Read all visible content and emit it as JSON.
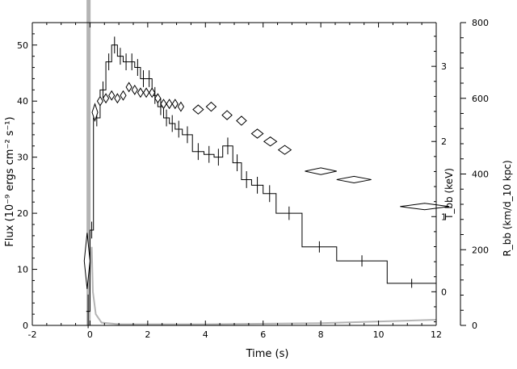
{
  "chart_data": {
    "type": "line",
    "xlabel": "Time (s)",
    "xlim": [
      -2,
      12
    ],
    "x_ticks": [
      -2,
      0,
      2,
      4,
      6,
      8,
      10,
      12
    ],
    "left_axis": {
      "label": "Flux (10⁻⁹ ergs cm⁻² s⁻¹)",
      "ylim": [
        0,
        54
      ],
      "ticks": [
        0,
        10,
        20,
        30,
        40,
        50
      ]
    },
    "temperature_axis": {
      "label": "T_bb (keV)",
      "ticks": [
        0,
        1,
        2,
        3
      ],
      "flux_value_at_0": 6,
      "flux_value_at_1": 19.4
    },
    "radius_axis": {
      "label": "R_bb (km/d_10 kpc)",
      "ticks": [
        0,
        200,
        400,
        600,
        800
      ],
      "flux_value_at_0": 0,
      "flux_value_per_unit": 0.0675
    },
    "series": [
      {
        "kind": "histogram",
        "color": "#000000",
        "bins": [
          {
            "x0": -0.13,
            "x1": 0.0,
            "y": 2.5,
            "err": 3.0
          },
          {
            "x0": 0.0,
            "x1": 0.12,
            "y": 17,
            "err": 1.5
          },
          {
            "x0": 0.12,
            "x1": 0.35,
            "y": 37,
            "err": 1.5
          },
          {
            "x0": 0.35,
            "x1": 0.55,
            "y": 42,
            "err": 1.5
          },
          {
            "x0": 0.55,
            "x1": 0.75,
            "y": 47,
            "err": 1.5
          },
          {
            "x0": 0.75,
            "x1": 0.95,
            "y": 50,
            "err": 1.5
          },
          {
            "x0": 0.95,
            "x1": 1.15,
            "y": 48,
            "err": 1.5
          },
          {
            "x0": 1.15,
            "x1": 1.35,
            "y": 47,
            "err": 1.5
          },
          {
            "x0": 1.35,
            "x1": 1.55,
            "y": 47,
            "err": 1.5
          },
          {
            "x0": 1.55,
            "x1": 1.75,
            "y": 46,
            "err": 1.5
          },
          {
            "x0": 1.75,
            "x1": 1.95,
            "y": 44,
            "err": 1.5
          },
          {
            "x0": 1.95,
            "x1": 2.15,
            "y": 44,
            "err": 1.5
          },
          {
            "x0": 2.15,
            "x1": 2.35,
            "y": 41,
            "err": 1.5
          },
          {
            "x0": 2.35,
            "x1": 2.55,
            "y": 39,
            "err": 1.5
          },
          {
            "x0": 2.55,
            "x1": 2.75,
            "y": 37,
            "err": 1.5
          },
          {
            "x0": 2.75,
            "x1": 2.95,
            "y": 36,
            "err": 1.5
          },
          {
            "x0": 2.95,
            "x1": 3.2,
            "y": 35,
            "err": 1.5
          },
          {
            "x0": 3.2,
            "x1": 3.55,
            "y": 34,
            "err": 1.5
          },
          {
            "x0": 3.55,
            "x1": 3.95,
            "y": 31,
            "err": 1.5
          },
          {
            "x0": 3.95,
            "x1": 4.3,
            "y": 30.5,
            "err": 1.5
          },
          {
            "x0": 4.3,
            "x1": 4.6,
            "y": 30,
            "err": 1.5
          },
          {
            "x0": 4.6,
            "x1": 4.95,
            "y": 32,
            "err": 1.5
          },
          {
            "x0": 4.95,
            "x1": 5.25,
            "y": 29,
            "err": 1.5
          },
          {
            "x0": 5.25,
            "x1": 5.6,
            "y": 26,
            "err": 1.5
          },
          {
            "x0": 5.6,
            "x1": 6.0,
            "y": 25,
            "err": 1.5
          },
          {
            "x0": 6.0,
            "x1": 6.45,
            "y": 23.5,
            "err": 1.5
          },
          {
            "x0": 6.45,
            "x1": 7.35,
            "y": 20,
            "err": 1.2
          },
          {
            "x0": 7.35,
            "x1": 8.55,
            "y": 14,
            "err": 1.0
          },
          {
            "x0": 8.55,
            "x1": 10.3,
            "y": 11.5,
            "err": 1.0
          },
          {
            "x0": 10.3,
            "x1": 12.0,
            "y": 7.5,
            "err": 0.8
          }
        ]
      },
      {
        "kind": "diamonds",
        "color": "#000000",
        "points": [
          {
            "x": -0.1,
            "y": 11.5,
            "xerr": 0.1,
            "yerr": 5.0
          },
          {
            "x": 0.17,
            "y": 38,
            "xerr": 0.09,
            "yerr": 1.5
          },
          {
            "x": 0.35,
            "y": 40,
            "xerr": 0.08,
            "yerr": 0.8
          },
          {
            "x": 0.55,
            "y": 40.5,
            "xerr": 0.08,
            "yerr": 0.8
          },
          {
            "x": 0.75,
            "y": 41,
            "xerr": 0.08,
            "yerr": 0.8
          },
          {
            "x": 0.95,
            "y": 40.5,
            "xerr": 0.08,
            "yerr": 0.8
          },
          {
            "x": 1.15,
            "y": 41,
            "xerr": 0.08,
            "yerr": 0.8
          },
          {
            "x": 1.35,
            "y": 42.5,
            "xerr": 0.08,
            "yerr": 0.8
          },
          {
            "x": 1.55,
            "y": 42,
            "xerr": 0.08,
            "yerr": 0.8
          },
          {
            "x": 1.75,
            "y": 41.5,
            "xerr": 0.08,
            "yerr": 0.8
          },
          {
            "x": 1.95,
            "y": 41.5,
            "xerr": 0.08,
            "yerr": 0.8
          },
          {
            "x": 2.15,
            "y": 41.5,
            "xerr": 0.08,
            "yerr": 0.8
          },
          {
            "x": 2.35,
            "y": 40.5,
            "xerr": 0.08,
            "yerr": 0.8
          },
          {
            "x": 2.55,
            "y": 39.5,
            "xerr": 0.08,
            "yerr": 0.8
          },
          {
            "x": 2.75,
            "y": 39.5,
            "xerr": 0.08,
            "yerr": 0.8
          },
          {
            "x": 2.95,
            "y": 39.5,
            "xerr": 0.08,
            "yerr": 0.8
          },
          {
            "x": 3.15,
            "y": 39,
            "xerr": 0.1,
            "yerr": 0.8
          },
          {
            "x": 3.75,
            "y": 38.5,
            "xerr": 0.18,
            "yerr": 0.8
          },
          {
            "x": 4.2,
            "y": 39,
            "xerr": 0.17,
            "yerr": 0.8
          },
          {
            "x": 4.75,
            "y": 37.5,
            "xerr": 0.17,
            "yerr": 0.8
          },
          {
            "x": 5.25,
            "y": 36.5,
            "xerr": 0.17,
            "yerr": 0.8
          },
          {
            "x": 5.8,
            "y": 34.2,
            "xerr": 0.2,
            "yerr": 0.8
          },
          {
            "x": 6.25,
            "y": 32.8,
            "xerr": 0.22,
            "yerr": 0.8
          },
          {
            "x": 6.75,
            "y": 31.3,
            "xerr": 0.22,
            "yerr": 0.8
          },
          {
            "x": 8.0,
            "y": 27.5,
            "xerr": 0.55,
            "yerr": 0.6
          },
          {
            "x": 9.15,
            "y": 26.0,
            "xerr": 0.6,
            "yerr": 0.5
          },
          {
            "x": 11.6,
            "y": 21.2,
            "xerr": 0.85,
            "yerr": 0.5
          }
        ]
      },
      {
        "kind": "gray_curve",
        "color": "#b4b4b4",
        "points": [
          [
            -0.08,
            0.5
          ],
          [
            0.0,
            10
          ],
          [
            0.06,
            14
          ],
          [
            0.1,
            6
          ],
          [
            0.2,
            2
          ],
          [
            0.4,
            0.5
          ],
          [
            1.0,
            0.2
          ],
          [
            4.0,
            0.2
          ],
          [
            8.0,
            0.4
          ],
          [
            12.0,
            1.0
          ]
        ]
      }
    ],
    "marker_band": {
      "x": -0.05,
      "color": "#b4b4b4"
    }
  }
}
